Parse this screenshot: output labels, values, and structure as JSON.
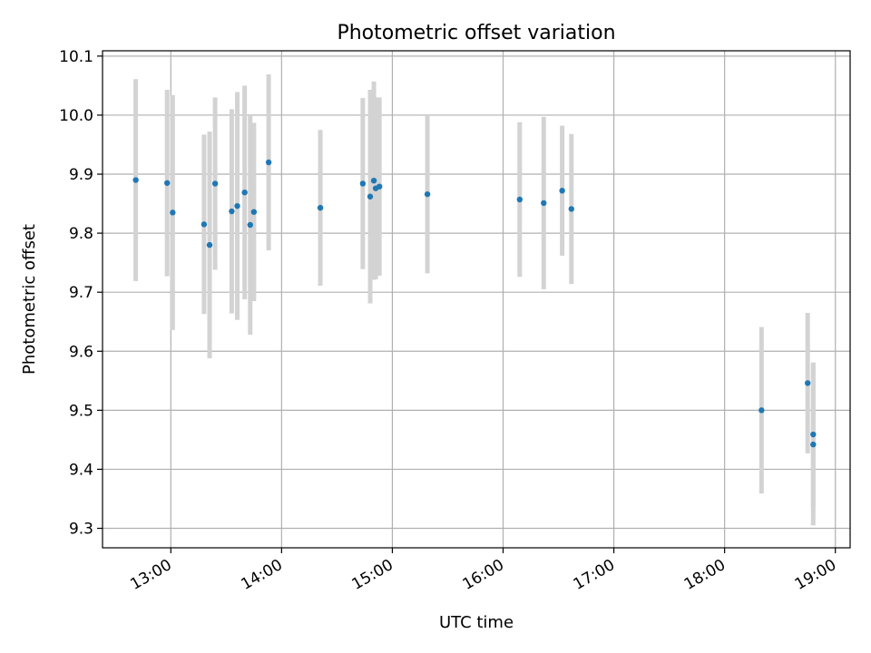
{
  "chart_data": {
    "type": "scatter",
    "title": "Photometric offset variation",
    "xlabel": "UTC time",
    "ylabel": "Photometric offset",
    "x_is_time": true,
    "xlim": [
      "12:23",
      "19:08"
    ],
    "ylim": [
      9.267,
      10.109
    ],
    "x_ticks": [
      "13:00",
      "14:00",
      "15:00",
      "16:00",
      "17:00",
      "18:00",
      "19:00"
    ],
    "y_ticks": [
      "9.3",
      "9.4",
      "9.5",
      "9.6",
      "9.7",
      "9.8",
      "9.9",
      "10.0",
      "10.1"
    ],
    "grid": true,
    "marker_color": "#1f77b4",
    "errorbar_color": "#d3d3d3",
    "points": [
      {
        "x": "12:41",
        "y": 9.89,
        "err": 0.171
      },
      {
        "x": "12:58",
        "y": 9.885,
        "err": 0.158
      },
      {
        "x": "13:01",
        "y": 9.835,
        "err": 0.199
      },
      {
        "x": "13:18",
        "y": 9.815,
        "err": 0.152
      },
      {
        "x": "13:21",
        "y": 9.78,
        "err": 0.192
      },
      {
        "x": "13:24",
        "y": 9.884,
        "err": 0.146
      },
      {
        "x": "13:33",
        "y": 9.837,
        "err": 0.173
      },
      {
        "x": "13:36",
        "y": 9.846,
        "err": 0.193
      },
      {
        "x": "13:40",
        "y": 9.869,
        "err": 0.181
      },
      {
        "x": "13:43",
        "y": 9.814,
        "err": 0.186
      },
      {
        "x": "13:45",
        "y": 9.836,
        "err": 0.151
      },
      {
        "x": "13:53",
        "y": 9.92,
        "err": 0.149
      },
      {
        "x": "14:21",
        "y": 9.843,
        "err": 0.132
      },
      {
        "x": "14:44",
        "y": 9.884,
        "err": 0.145
      },
      {
        "x": "14:48",
        "y": 9.862,
        "err": 0.181
      },
      {
        "x": "14:50",
        "y": 9.889,
        "err": 0.168
      },
      {
        "x": "14:51",
        "y": 9.876,
        "err": 0.154
      },
      {
        "x": "14:53",
        "y": 9.879,
        "err": 0.151
      },
      {
        "x": "15:19",
        "y": 9.866,
        "err": 0.134
      },
      {
        "x": "16:09",
        "y": 9.857,
        "err": 0.131
      },
      {
        "x": "16:22",
        "y": 9.851,
        "err": 0.146
      },
      {
        "x": "16:32",
        "y": 9.872,
        "err": 0.11
      },
      {
        "x": "16:37",
        "y": 9.841,
        "err": 0.127
      },
      {
        "x": "18:20",
        "y": 9.5,
        "err": 0.141
      },
      {
        "x": "18:45",
        "y": 9.546,
        "err": 0.119
      },
      {
        "x": "18:48",
        "y": 9.459,
        "err": 0.122
      },
      {
        "x": "18:48",
        "y": 9.442,
        "err": 0.137
      }
    ]
  }
}
